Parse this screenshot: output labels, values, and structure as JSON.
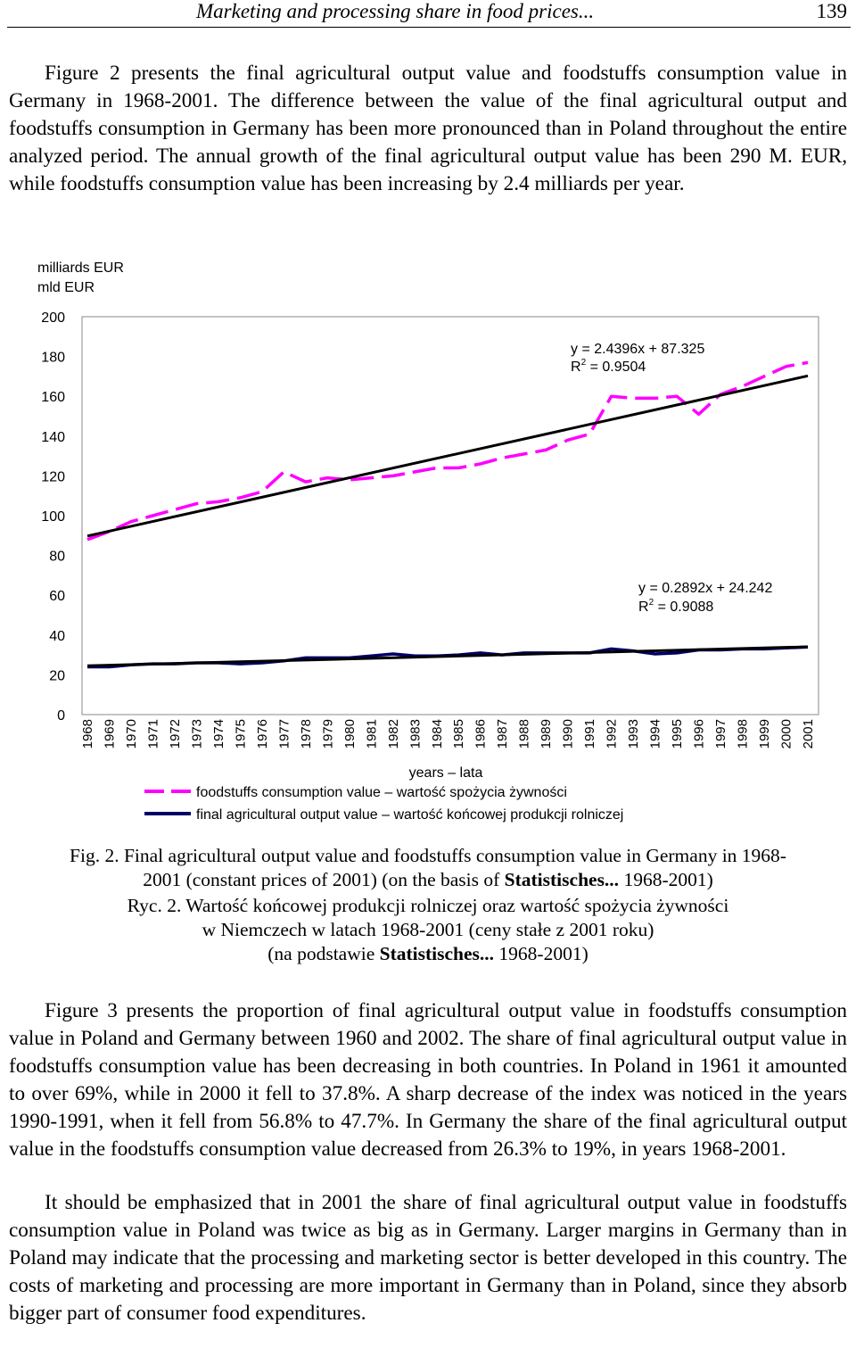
{
  "header": {
    "title": "Marketing and processing share in food prices...",
    "page_number": "139"
  },
  "paragraphs": {
    "p1": "Figure 2 presents the final agricultural output value and foodstuffs consumption value in Germany in 1968-2001. The difference between the value of the final agricultural output and foodstuffs consumption in Germany has been more pronounced than in Poland throughout the entire analyzed period. The annual growth of the final agricultural output value has been 290 M. EUR, while foodstuffs consumption value has been increasing by 2.4 milliards per year.",
    "p2": "Figure 3 presents the proportion of final agricultural output value in foodstuffs consumption value in Poland and Germany between 1960 and 2002. The share of final agricultural output value in foodstuffs consumption value has been decreasing in both countries. In Poland in 1961 it amounted to over 69%, while in 2000 it fell to 37.8%. A sharp decrease of the index was noticed in the years 1990-1991, when it fell from 56.8% to 47.7%. In Germany the share of the final agricultural output value in the foodstuffs consumption value decreased from 26.3% to 19%, in years 1968-2001.",
    "p3": "It should be emphasized that in 2001 the share of final agricultural output value in foodstuffs consumption value in Poland was twice as big as in Germany. Larger margins in Germany than in Poland may indicate that the processing and marketing sector is better developed in this country. The costs of marketing and processing are more important in Germany than in Poland, since they absorb bigger part of consumer food expenditures."
  },
  "caption": {
    "en_prefix": "Fig. 2. Final agricultural output value and foodstuffs consumption value in Germany in 1968-2001 (constant prices of 2001) (on the basis of ",
    "en_bold": "Statistisches...",
    "en_suffix": " 1968-2001)",
    "pl_line1": "Ryc. 2. Wartość końcowej produkcji rolniczej oraz wartość spożycia żywności",
    "pl_line2": "w Niemczech w latach 1968-2001 (ceny stałe z 2001 roku)",
    "pl_line3_prefix": "(na podstawie ",
    "pl_line3_bold": "Statistisches...",
    "pl_line3_suffix": " 1968-2001)"
  },
  "chart_data": {
    "type": "line",
    "ylabel_line1": "milliards EUR",
    "ylabel_line2": "mld EUR",
    "xlabel": "years – lata",
    "ylim": [
      0,
      200
    ],
    "yticks": [
      0,
      20,
      40,
      60,
      80,
      100,
      120,
      140,
      160,
      180,
      200
    ],
    "x": [
      "1968",
      "1969",
      "1970",
      "1971",
      "1972",
      "1973",
      "1974",
      "1975",
      "1976",
      "1977",
      "1978",
      "1979",
      "1980",
      "1981",
      "1982",
      "1983",
      "1984",
      "1985",
      "1986",
      "1987",
      "1988",
      "1989",
      "1990",
      "1991",
      "1992",
      "1993",
      "1994",
      "1995",
      "1996",
      "1997",
      "1998",
      "1999",
      "2000",
      "2001"
    ],
    "grid": false,
    "legend_position": "bottom",
    "series": [
      {
        "name": "foodstuffs consumption value – wartość spożycia żywności",
        "style": "dashed",
        "color": "#ff00ff",
        "values": [
          88,
          92,
          97,
          100,
          103,
          106,
          107,
          109,
          112,
          122,
          117,
          119,
          118,
          119,
          120,
          122,
          124,
          124,
          126,
          129,
          131,
          133,
          138,
          141,
          160,
          159,
          159,
          160,
          151,
          161,
          165,
          170,
          175,
          177
        ]
      },
      {
        "name": "final agricultural output value – wartość końcowej produkcji rolniczej",
        "style": "solid",
        "color": "#000066",
        "values": [
          24,
          24,
          25,
          25.5,
          25.5,
          26,
          26,
          25.5,
          26,
          27,
          28.5,
          28.5,
          28.5,
          29.5,
          30.5,
          29.5,
          29.5,
          30,
          31,
          30,
          31,
          31,
          31,
          31,
          33,
          32,
          30.5,
          31,
          32.5,
          32.5,
          33,
          33,
          33.5,
          34
        ]
      }
    ],
    "trendlines": [
      {
        "for_series": 0,
        "equation": "y = 2.4396x + 87.325",
        "r2_prefix": "R",
        "r2_sup": "2",
        "r2_suffix": " = 0.9504",
        "slope": 2.4396,
        "intercept": 87.325,
        "color": "#000000"
      },
      {
        "for_series": 1,
        "equation": "y = 0.2892x + 24.242",
        "r2_prefix": "R",
        "r2_sup": "2",
        "r2_suffix": " = 0.9088",
        "slope": 0.2892,
        "intercept": 24.242,
        "color": "#000000"
      }
    ]
  }
}
